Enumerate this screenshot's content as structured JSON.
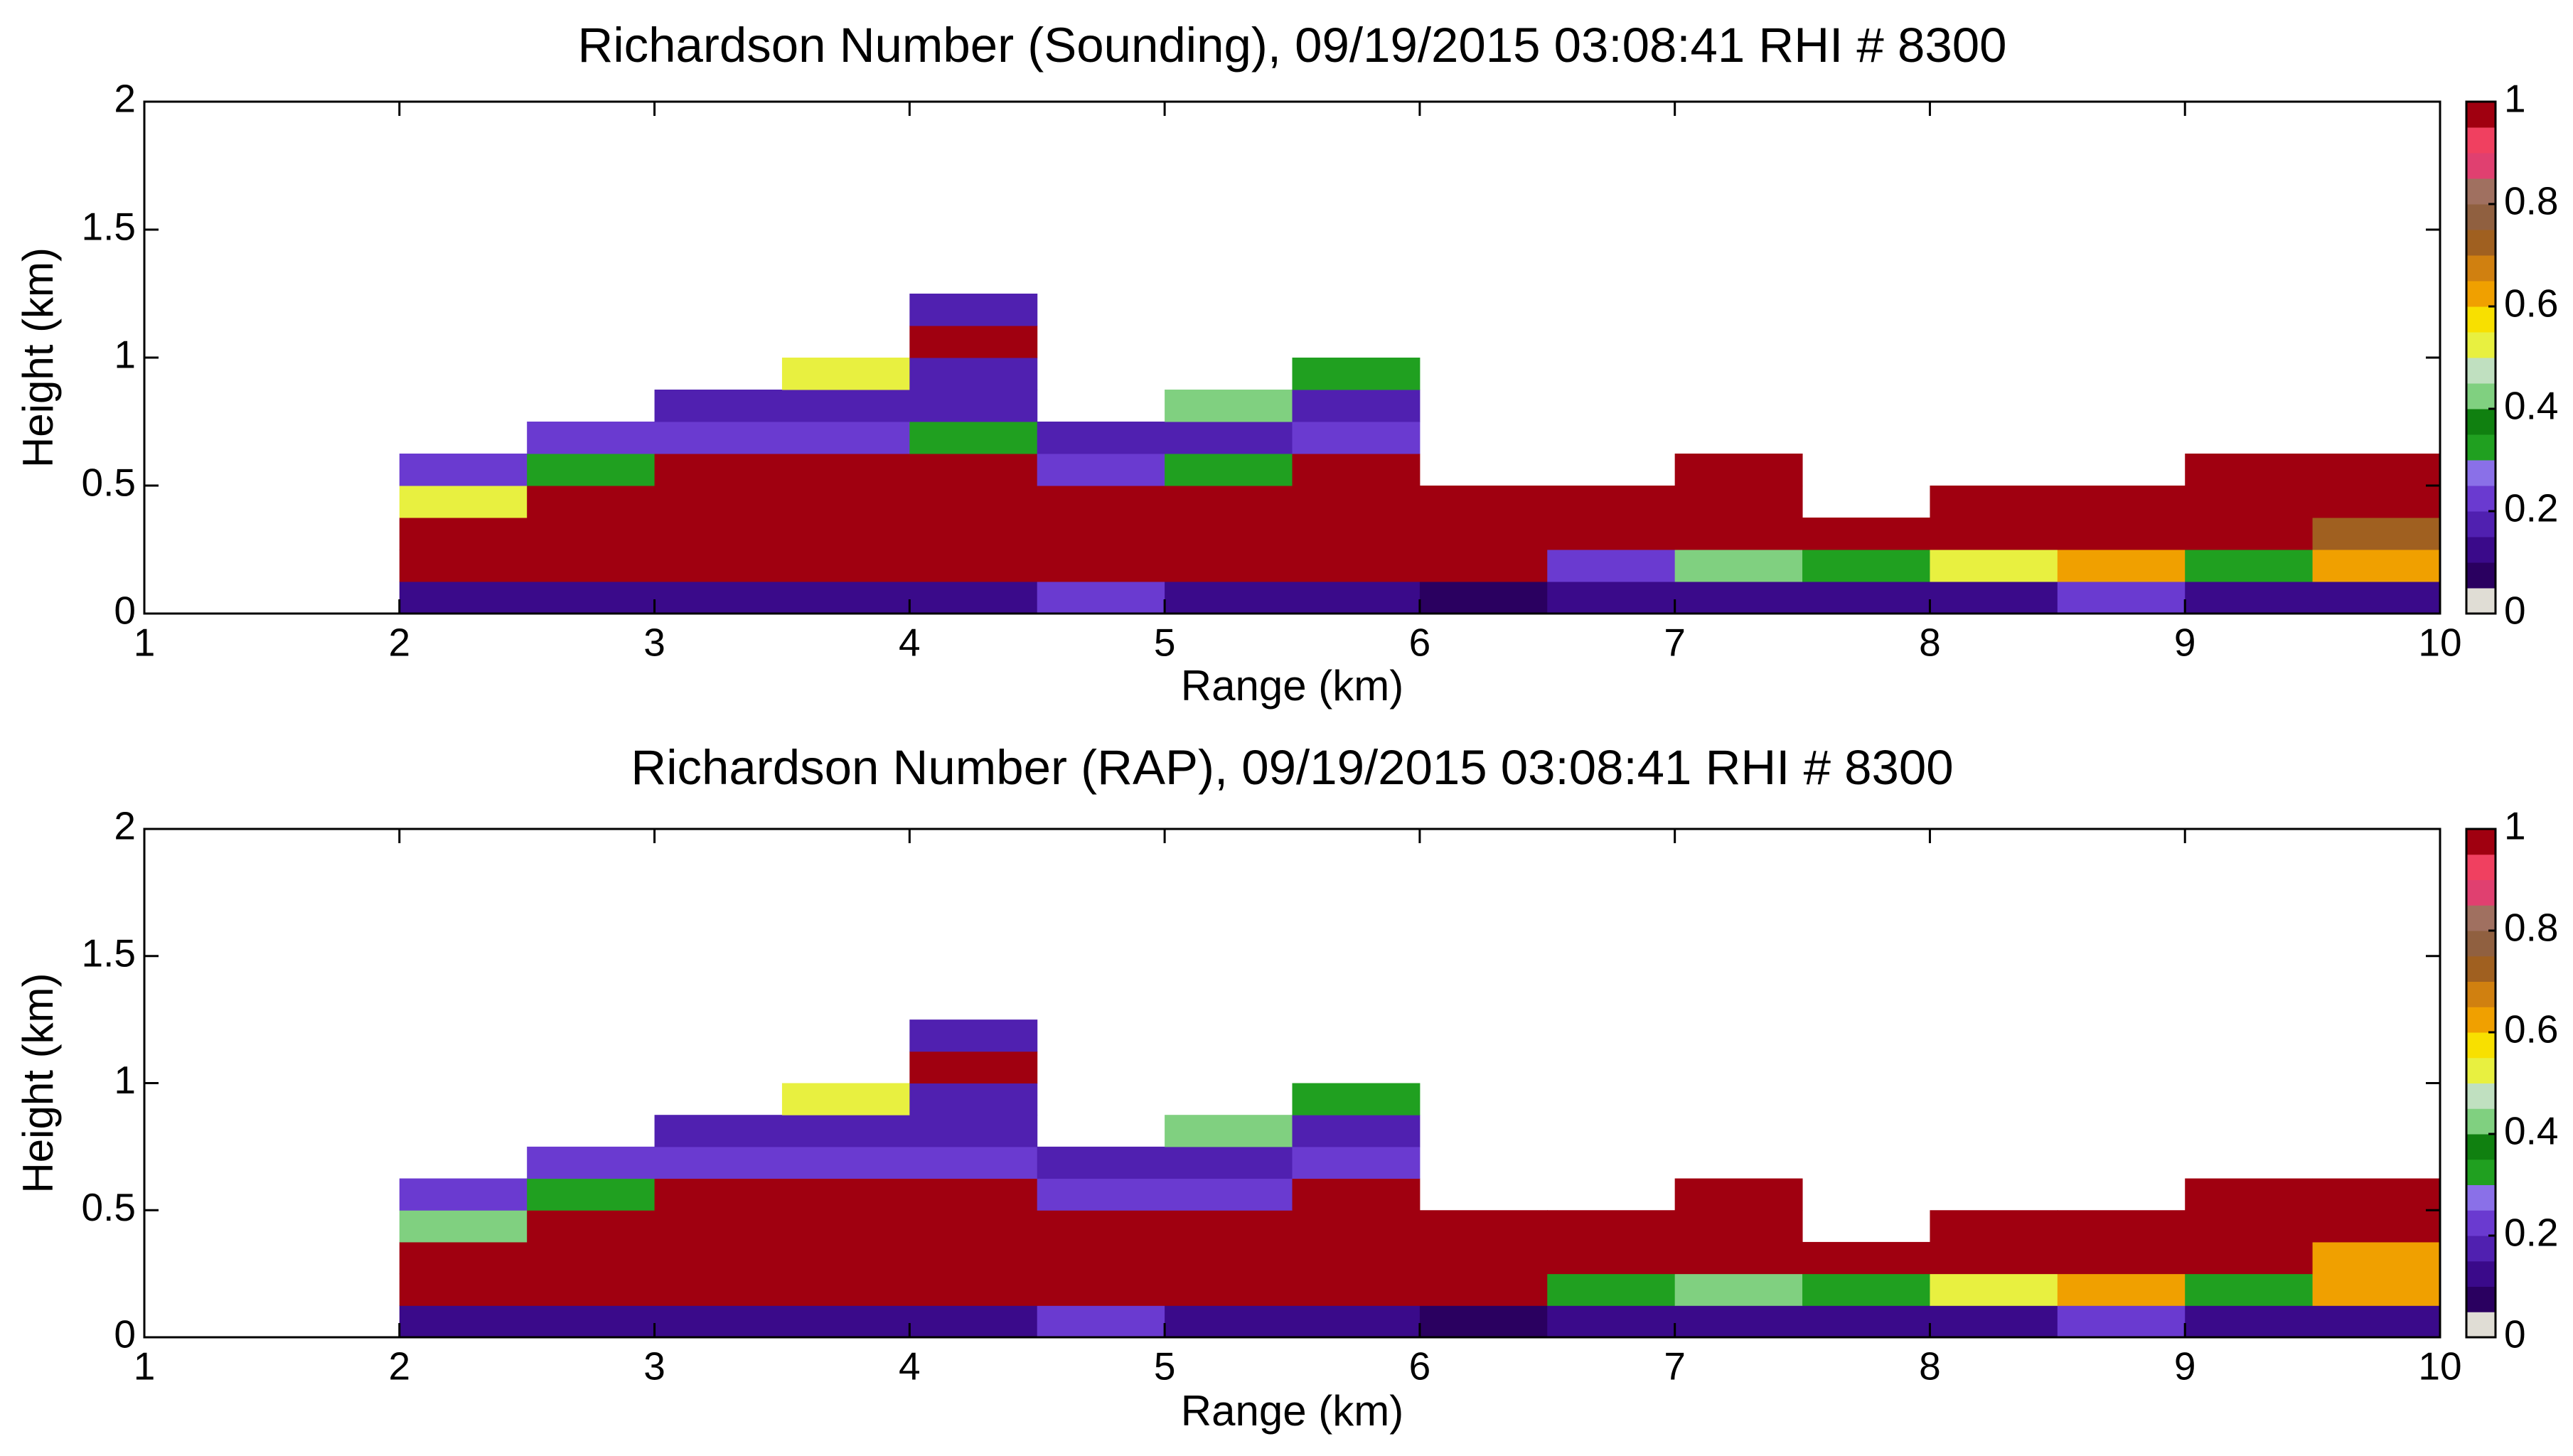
{
  "chart_data": [
    {
      "type": "heatmap",
      "title": "Richardson Number (Sounding), 09/19/2015 03:08:41 RHI # 8300",
      "xlabel": "Range (km)",
      "ylabel": "Height (km)",
      "xlim": [
        1,
        10
      ],
      "ylim": [
        0,
        2
      ],
      "xticks": [
        1,
        2,
        3,
        4,
        5,
        6,
        7,
        8,
        9,
        10
      ],
      "yticks": [
        0,
        0.5,
        1,
        1.5,
        2
      ],
      "x": [
        2,
        2.5,
        3,
        3.5,
        4,
        4.5,
        5,
        5.5,
        6,
        6.5,
        7,
        7.5,
        8,
        8.5,
        9,
        9.5,
        10
      ],
      "y": [
        0,
        0.125,
        0.25,
        0.375,
        0.5,
        0.625,
        0.75,
        0.875,
        1,
        1.125,
        1.25
      ],
      "values": [
        [
          0.1,
          0.1,
          0.1,
          0.1,
          0.1,
          0.2,
          0.1,
          0.1,
          0.05,
          0.1,
          0.1,
          0.1,
          0.1,
          0.2,
          0.1,
          0.1
        ],
        [
          1,
          1,
          1,
          1,
          1,
          1,
          1,
          1,
          1,
          0.2,
          0.4,
          0.3,
          0.5,
          0.6,
          0.3,
          0.6
        ],
        [
          1,
          1,
          1,
          1,
          1,
          1,
          1,
          1,
          1,
          1,
          1,
          1,
          1,
          1,
          1,
          0.7
        ],
        [
          0.5,
          1,
          1,
          1,
          1,
          1,
          1,
          1,
          1,
          1,
          1,
          null,
          1,
          1,
          1,
          1
        ],
        [
          0.2,
          0.3,
          1,
          1,
          1,
          0.2,
          0.3,
          1,
          null,
          null,
          1,
          null,
          null,
          null,
          1,
          1
        ],
        [
          null,
          0.2,
          0.2,
          0.2,
          0.3,
          0.15,
          0.15,
          0.2,
          null,
          null,
          null,
          null,
          null,
          null,
          null,
          null
        ],
        [
          null,
          null,
          0.15,
          0.15,
          0.15,
          null,
          0.4,
          0.15,
          null,
          null,
          null,
          null,
          null,
          null,
          null,
          null
        ],
        [
          null,
          null,
          null,
          0.5,
          0.15,
          null,
          null,
          0.3,
          null,
          null,
          null,
          null,
          null,
          null,
          null,
          null
        ],
        [
          null,
          null,
          null,
          null,
          1,
          null,
          null,
          null,
          null,
          null,
          null,
          null,
          null,
          null,
          null,
          null
        ],
        [
          null,
          null,
          null,
          null,
          0.15,
          null,
          null,
          null,
          null,
          null,
          null,
          null,
          null,
          null,
          null,
          null
        ]
      ],
      "clim": [
        0,
        1
      ],
      "cticks": [
        0,
        0.2,
        0.4,
        0.6,
        0.8,
        1
      ],
      "colormap": [
        "#e0ddd5",
        "#2a0060",
        "#3a0a8a",
        "#5020b0",
        "#6a3ad0",
        "#8a70e8",
        "#20a020",
        "#108010",
        "#80d080",
        "#c0e0c0",
        "#e8f040",
        "#f8e000",
        "#f0a000",
        "#d08010",
        "#a06020",
        "#906040",
        "#a07060",
        "#e04070",
        "#f04060",
        "#a00010"
      ]
    },
    {
      "type": "heatmap",
      "title": "Richardson Number (RAP), 09/19/2015 03:08:41 RHI # 8300",
      "xlabel": "Range (km)",
      "ylabel": "Height (km)",
      "xlim": [
        1,
        10
      ],
      "ylim": [
        0,
        2
      ],
      "xticks": [
        1,
        2,
        3,
        4,
        5,
        6,
        7,
        8,
        9,
        10
      ],
      "yticks": [
        0,
        0.5,
        1,
        1.5,
        2
      ],
      "x": [
        2,
        2.5,
        3,
        3.5,
        4,
        4.5,
        5,
        5.5,
        6,
        6.5,
        7,
        7.5,
        8,
        8.5,
        9,
        9.5,
        10
      ],
      "y": [
        0,
        0.125,
        0.25,
        0.375,
        0.5,
        0.625,
        0.75,
        0.875,
        1,
        1.125,
        1.25
      ],
      "values": [
        [
          0.1,
          0.1,
          0.1,
          0.1,
          0.1,
          0.2,
          0.1,
          0.1,
          0.05,
          0.1,
          0.1,
          0.1,
          0.1,
          0.2,
          0.1,
          0.1
        ],
        [
          1,
          1,
          1,
          1,
          1,
          1,
          1,
          1,
          1,
          0.3,
          0.4,
          0.3,
          0.5,
          0.6,
          0.3,
          0.6
        ],
        [
          1,
          1,
          1,
          1,
          1,
          1,
          1,
          1,
          1,
          1,
          1,
          1,
          1,
          1,
          1,
          0.6
        ],
        [
          0.4,
          1,
          1,
          1,
          1,
          1,
          1,
          1,
          1,
          1,
          1,
          null,
          1,
          1,
          1,
          1
        ],
        [
          0.2,
          0.3,
          1,
          1,
          1,
          0.2,
          0.2,
          1,
          null,
          null,
          1,
          null,
          null,
          null,
          1,
          1
        ],
        [
          null,
          0.2,
          0.2,
          0.2,
          0.2,
          0.15,
          0.15,
          0.2,
          null,
          null,
          null,
          null,
          null,
          null,
          null,
          null
        ],
        [
          null,
          null,
          0.15,
          0.15,
          0.15,
          null,
          0.4,
          0.15,
          null,
          null,
          null,
          null,
          null,
          null,
          null,
          null
        ],
        [
          null,
          null,
          null,
          0.5,
          0.15,
          null,
          null,
          0.3,
          null,
          null,
          null,
          null,
          null,
          null,
          null,
          null
        ],
        [
          null,
          null,
          null,
          null,
          1,
          null,
          null,
          null,
          null,
          null,
          null,
          null,
          null,
          null,
          null,
          null
        ],
        [
          null,
          null,
          null,
          null,
          0.15,
          null,
          null,
          null,
          null,
          null,
          null,
          null,
          null,
          null,
          null,
          null
        ]
      ],
      "clim": [
        0,
        1
      ],
      "cticks": [
        0,
        0.2,
        0.4,
        0.6,
        0.8,
        1
      ],
      "colormap": [
        "#e0ddd5",
        "#2a0060",
        "#3a0a8a",
        "#5020b0",
        "#6a3ad0",
        "#8a70e8",
        "#20a020",
        "#108010",
        "#80d080",
        "#c0e0c0",
        "#e8f040",
        "#f8e000",
        "#f0a000",
        "#d08010",
        "#a06020",
        "#906040",
        "#a07060",
        "#e04070",
        "#f04060",
        "#a00010"
      ]
    }
  ]
}
